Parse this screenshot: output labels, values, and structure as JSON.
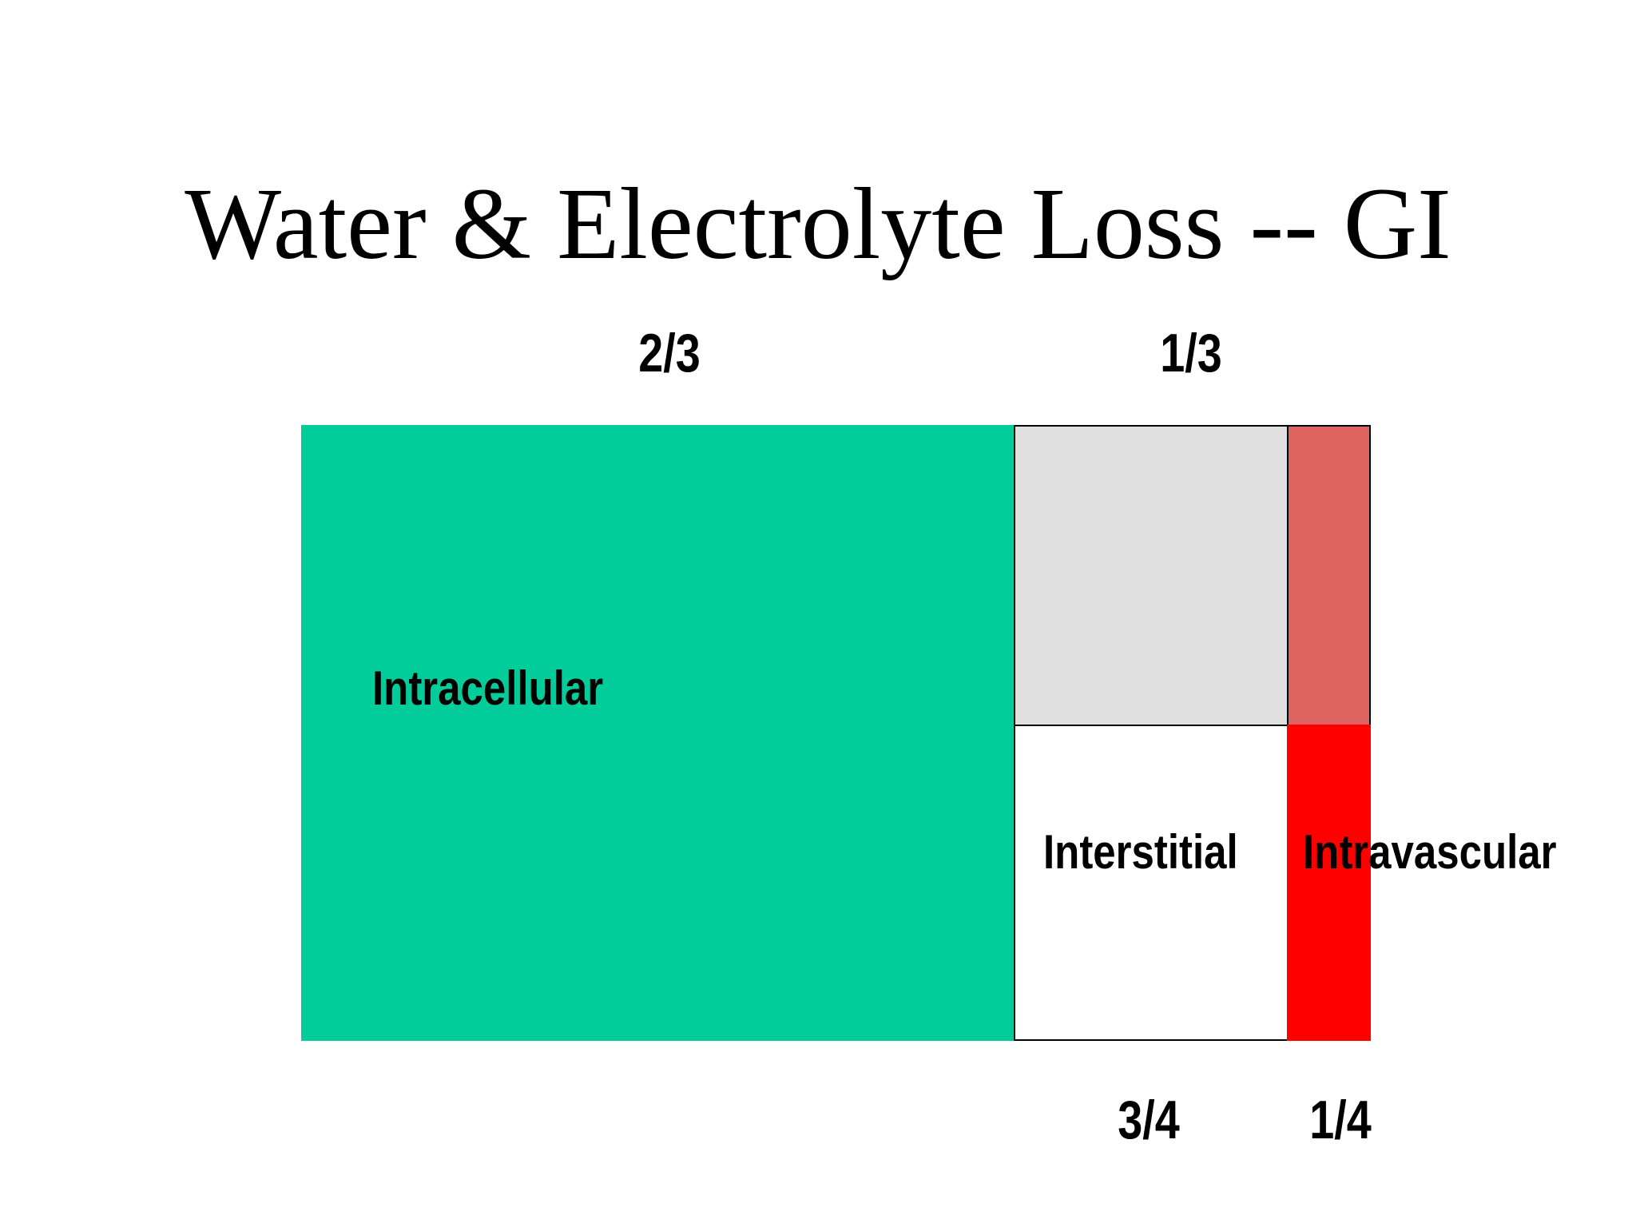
{
  "title": "Water & Electrolyte Loss -- GI",
  "fractions": {
    "intracellular_share": "2/3",
    "extracellular_share": "1/3",
    "interstitial_share": "3/4",
    "intravascular_share": "1/4"
  },
  "compartments": {
    "intracellular": "Intracellular",
    "interstitial": "Interstitial",
    "intravascular": "Intravascular"
  },
  "colors": {
    "intracellular": "#03cc9b",
    "interstitial_lost": "#e0e0e0",
    "interstitial_remaining": "#ffffff",
    "intravascular_lost": "#de6461",
    "intravascular_remaining": "#ff0000"
  }
}
